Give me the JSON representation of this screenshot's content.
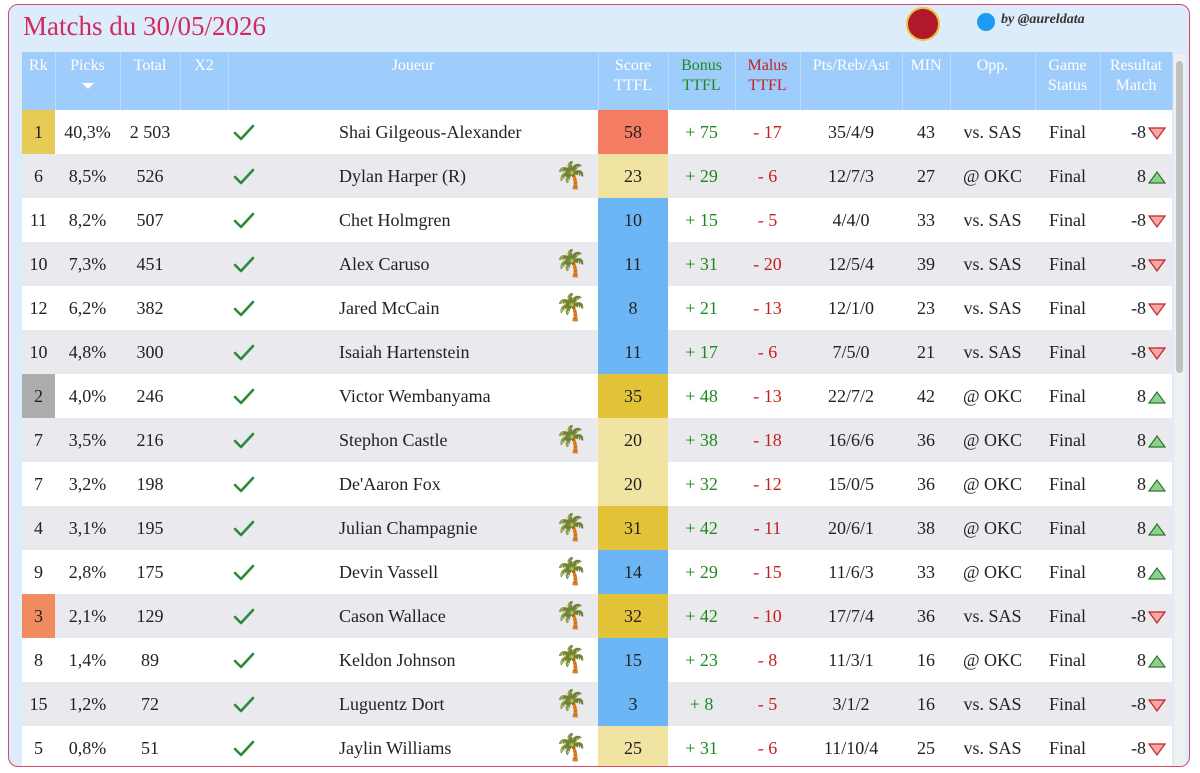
{
  "header": {
    "title": "Matchs du 30/05/2026",
    "credit": "by @aureldata"
  },
  "table": {
    "columns": [
      "Rk",
      "Picks",
      "Total",
      "X2",
      "Joueur",
      "Score TTFL",
      "Bonus TTFL",
      "Malus TTFL",
      "Pts/Reb/Ast",
      "MIN",
      "Opp.",
      "Game Status",
      "Resultat Match"
    ],
    "rows": [
      {
        "rk": 1,
        "rk_color": "#e6cb55",
        "picks": "40,3%",
        "total": "2 503",
        "player": "Shai Gilgeous-Alexander",
        "icon": null,
        "score": 58,
        "score_color": "#f47c62",
        "bonus": "+ 75",
        "malus": "- 17",
        "stats": "35/4/9",
        "min": 43,
        "opp": "vs. SAS",
        "status": "Final",
        "result": -8
      },
      {
        "rk": 6,
        "rk_color": null,
        "picks": "8,5%",
        "total": "526",
        "player": "Dylan Harper (R)",
        "icon": "🌴",
        "score": 23,
        "score_color": "#f1e3a2",
        "bonus": "+ 29",
        "malus": "- 6",
        "stats": "12/7/3",
        "min": 27,
        "opp": "@ OKC",
        "status": "Final",
        "result": 8
      },
      {
        "rk": 11,
        "rk_color": null,
        "picks": "8,2%",
        "total": "507",
        "player": "Chet Holmgren",
        "icon": null,
        "score": 10,
        "score_color": "#6db6f6",
        "bonus": "+ 15",
        "malus": "- 5",
        "stats": "4/4/0",
        "min": 33,
        "opp": "vs. SAS",
        "status": "Final",
        "result": -8
      },
      {
        "rk": 10,
        "rk_color": null,
        "picks": "7,3%",
        "total": "451",
        "player": "Alex Caruso",
        "icon": "🌴",
        "score": 11,
        "score_color": "#6db6f6",
        "bonus": "+ 31",
        "malus": "- 20",
        "stats": "12/5/4",
        "min": 39,
        "opp": "vs. SAS",
        "status": "Final",
        "result": -8
      },
      {
        "rk": 12,
        "rk_color": null,
        "picks": "6,2%",
        "total": "382",
        "player": "Jared McCain",
        "icon": "🌴",
        "score": 8,
        "score_color": "#6db6f6",
        "bonus": "+ 21",
        "malus": "- 13",
        "stats": "12/1/0",
        "min": 23,
        "opp": "vs. SAS",
        "status": "Final",
        "result": -8
      },
      {
        "rk": 10,
        "rk_color": null,
        "picks": "4,8%",
        "total": "300",
        "player": "Isaiah Hartenstein",
        "icon": null,
        "score": 11,
        "score_color": "#6db6f6",
        "bonus": "+ 17",
        "malus": "- 6",
        "stats": "7/5/0",
        "min": 21,
        "opp": "vs. SAS",
        "status": "Final",
        "result": -8
      },
      {
        "rk": 2,
        "rk_color": "#acacac",
        "picks": "4,0%",
        "total": "246",
        "player": "Victor Wembanyama",
        "icon": null,
        "score": 35,
        "score_color": "#e2c236",
        "bonus": "+ 48",
        "malus": "- 13",
        "stats": "22/7/2",
        "min": 42,
        "opp": "@ OKC",
        "status": "Final",
        "result": 8
      },
      {
        "rk": 7,
        "rk_color": null,
        "picks": "3,5%",
        "total": "216",
        "player": "Stephon Castle",
        "icon": "🌴",
        "score": 20,
        "score_color": "#f1e3a2",
        "bonus": "+ 38",
        "malus": "- 18",
        "stats": "16/6/6",
        "min": 36,
        "opp": "@ OKC",
        "status": "Final",
        "result": 8
      },
      {
        "rk": 7,
        "rk_color": null,
        "picks": "3,2%",
        "total": "198",
        "player": "De'Aaron Fox",
        "icon": null,
        "score": 20,
        "score_color": "#f1e3a2",
        "bonus": "+ 32",
        "malus": "- 12",
        "stats": "15/0/5",
        "min": 36,
        "opp": "@ OKC",
        "status": "Final",
        "result": 8
      },
      {
        "rk": 4,
        "rk_color": null,
        "picks": "3,1%",
        "total": "195",
        "player": "Julian Champagnie",
        "icon": "🌴",
        "score": 31,
        "score_color": "#e2c236",
        "bonus": "+ 42",
        "malus": "- 11",
        "stats": "20/6/1",
        "min": 38,
        "opp": "@ OKC",
        "status": "Final",
        "result": 8
      },
      {
        "rk": 9,
        "rk_color": null,
        "picks": "2,8%",
        "total": "175",
        "player": "Devin Vassell",
        "icon": "🌴",
        "score": 14,
        "score_color": "#6db6f6",
        "bonus": "+ 29",
        "malus": "- 15",
        "stats": "11/6/3",
        "min": 33,
        "opp": "@ OKC",
        "status": "Final",
        "result": 8
      },
      {
        "rk": 3,
        "rk_color": "#ef8b5e",
        "picks": "2,1%",
        "total": "129",
        "player": "Cason Wallace",
        "icon": "🌴",
        "score": 32,
        "score_color": "#e2c236",
        "bonus": "+ 42",
        "malus": "- 10",
        "stats": "17/7/4",
        "min": 36,
        "opp": "vs. SAS",
        "status": "Final",
        "result": -8
      },
      {
        "rk": 8,
        "rk_color": null,
        "picks": "1,4%",
        "total": "89",
        "player": "Keldon Johnson",
        "icon": "🌴",
        "score": 15,
        "score_color": "#6db6f6",
        "bonus": "+ 23",
        "malus": "- 8",
        "stats": "11/3/1",
        "min": 16,
        "opp": "@ OKC",
        "status": "Final",
        "result": 8
      },
      {
        "rk": 15,
        "rk_color": null,
        "picks": "1,2%",
        "total": "72",
        "player": "Luguentz Dort",
        "icon": "🌴",
        "score": 3,
        "score_color": "#6db6f6",
        "bonus": "+ 8",
        "malus": "- 5",
        "stats": "3/1/2",
        "min": 16,
        "opp": "vs. SAS",
        "status": "Final",
        "result": -8
      },
      {
        "rk": 5,
        "rk_color": null,
        "picks": "0,8%",
        "total": "51",
        "player": "Jaylin Williams",
        "icon": "🌴",
        "score": 25,
        "score_color": "#f1e3a2",
        "bonus": "+ 31",
        "malus": "- 6",
        "stats": "11/10/4",
        "min": 25,
        "opp": "vs. SAS",
        "status": "Final",
        "result": -8
      }
    ]
  }
}
